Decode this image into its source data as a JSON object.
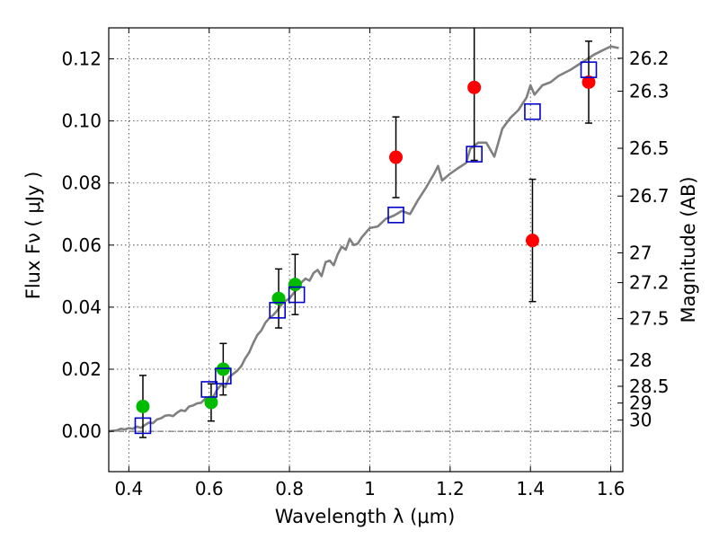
{
  "chart_data": {
    "type": "scatter",
    "xlabel": "Wavelength  λ (μm)",
    "ylabel": "Flux  Fν ( μJy )",
    "ylabel_right": "Magnitude (AB)",
    "xlim": [
      0.35,
      1.63
    ],
    "ylim": [
      -0.013,
      0.13
    ],
    "grid": true,
    "x_ticks": [
      0.4,
      0.6,
      0.8,
      1.0,
      1.2,
      1.4,
      1.6
    ],
    "x_tick_labels": [
      "0.4",
      "0.6",
      "0.8",
      "1",
      "1.2",
      "1.4",
      "1.6"
    ],
    "y_ticks": [
      0.0,
      0.02,
      0.04,
      0.06,
      0.08,
      0.1,
      0.12
    ],
    "y_tick_labels": [
      "0.00",
      "0.02",
      "0.04",
      "0.06",
      "0.08",
      "0.10",
      "0.12"
    ],
    "right_axis_ticks": [
      {
        "label": "26.2",
        "flux": 0.1202
      },
      {
        "label": "26.3",
        "flux": 0.1096
      },
      {
        "label": "26.5",
        "flux": 0.0912
      },
      {
        "label": "26.7",
        "flux": 0.0758
      },
      {
        "label": "27",
        "flux": 0.0575
      },
      {
        "label": "27.2",
        "flux": 0.0479
      },
      {
        "label": "27.5",
        "flux": 0.0363
      },
      {
        "label": "28",
        "flux": 0.0229
      },
      {
        "label": "28.5",
        "flux": 0.0145
      },
      {
        "label": "29",
        "flux": 0.0091
      },
      {
        "label": "30",
        "flux": 0.0036
      }
    ],
    "series": [
      {
        "kind": "line",
        "color": "#808080",
        "points": [
          [
            0.35,
            0.0
          ],
          [
            0.37,
            0.0003
          ],
          [
            0.38,
            0.0008
          ],
          [
            0.39,
            0.0006
          ],
          [
            0.4,
            0.001
          ],
          [
            0.41,
            0.0008
          ],
          [
            0.42,
            0.0015
          ],
          [
            0.43,
            0.0011
          ],
          [
            0.44,
            0.002
          ],
          [
            0.45,
            0.0028
          ],
          [
            0.46,
            0.0026
          ],
          [
            0.47,
            0.0038
          ],
          [
            0.48,
            0.0042
          ],
          [
            0.49,
            0.005
          ],
          [
            0.5,
            0.0052
          ],
          [
            0.51,
            0.0049
          ],
          [
            0.52,
            0.006
          ],
          [
            0.53,
            0.0068
          ],
          [
            0.54,
            0.0065
          ],
          [
            0.55,
            0.008
          ],
          [
            0.56,
            0.0083
          ],
          [
            0.57,
            0.009
          ],
          [
            0.58,
            0.0092
          ],
          [
            0.59,
            0.0105
          ],
          [
            0.6,
            0.0098
          ],
          [
            0.61,
            0.011
          ],
          [
            0.62,
            0.0135
          ],
          [
            0.63,
            0.015
          ],
          [
            0.64,
            0.0142
          ],
          [
            0.65,
            0.0175
          ],
          [
            0.66,
            0.0185
          ],
          [
            0.67,
            0.0195
          ],
          [
            0.68,
            0.021
          ],
          [
            0.69,
            0.0235
          ],
          [
            0.7,
            0.0255
          ],
          [
            0.71,
            0.0285
          ],
          [
            0.72,
            0.031
          ],
          [
            0.73,
            0.0325
          ],
          [
            0.74,
            0.035
          ],
          [
            0.75,
            0.0365
          ],
          [
            0.76,
            0.0375
          ],
          [
            0.77,
            0.039
          ],
          [
            0.78,
            0.0408
          ],
          [
            0.79,
            0.042
          ],
          [
            0.8,
            0.0428
          ],
          [
            0.81,
            0.0445
          ],
          [
            0.82,
            0.046
          ],
          [
            0.83,
            0.048
          ],
          [
            0.84,
            0.0492
          ],
          [
            0.85,
            0.0485
          ],
          [
            0.86,
            0.051
          ],
          [
            0.87,
            0.052
          ],
          [
            0.88,
            0.05
          ],
          [
            0.89,
            0.0545
          ],
          [
            0.9,
            0.055
          ],
          [
            0.91,
            0.0535
          ],
          [
            0.92,
            0.057
          ],
          [
            0.93,
            0.0595
          ],
          [
            0.94,
            0.0585
          ],
          [
            0.95,
            0.062
          ],
          [
            0.96,
            0.06
          ],
          [
            0.97,
            0.0605
          ],
          [
            0.98,
            0.0625
          ],
          [
            0.99,
            0.064
          ],
          [
            1.0,
            0.0655
          ],
          [
            1.02,
            0.066
          ],
          [
            1.04,
            0.0685
          ],
          [
            1.06,
            0.0695
          ],
          [
            1.08,
            0.071
          ],
          [
            1.1,
            0.07
          ],
          [
            1.12,
            0.0745
          ],
          [
            1.14,
            0.0785
          ],
          [
            1.16,
            0.083
          ],
          [
            1.17,
            0.0855
          ],
          [
            1.18,
            0.0808
          ],
          [
            1.2,
            0.083
          ],
          [
            1.22,
            0.0848
          ],
          [
            1.24,
            0.0865
          ],
          [
            1.25,
            0.091
          ],
          [
            1.27,
            0.093
          ],
          [
            1.29,
            0.093
          ],
          [
            1.31,
            0.0885
          ],
          [
            1.33,
            0.0975
          ],
          [
            1.35,
            0.101
          ],
          [
            1.37,
            0.1035
          ],
          [
            1.39,
            0.1075
          ],
          [
            1.4,
            0.1115
          ],
          [
            1.41,
            0.1085
          ],
          [
            1.43,
            0.1115
          ],
          [
            1.45,
            0.1125
          ],
          [
            1.47,
            0.1145
          ],
          [
            1.5,
            0.1165
          ],
          [
            1.53,
            0.119
          ],
          [
            1.56,
            0.1215
          ],
          [
            1.58,
            0.1228
          ],
          [
            1.6,
            0.124
          ],
          [
            1.62,
            0.1235
          ]
        ]
      },
      {
        "kind": "points",
        "marker": "circle",
        "color": "#00bb00",
        "points": [
          {
            "x": 0.435,
            "y": 0.008,
            "err": 0.01
          },
          {
            "x": 0.605,
            "y": 0.0093,
            "err": 0.006
          },
          {
            "x": 0.635,
            "y": 0.02,
            "err": 0.0083
          },
          {
            "x": 0.773,
            "y": 0.0428,
            "err": 0.0095
          },
          {
            "x": 0.814,
            "y": 0.0473,
            "err": 0.0097
          }
        ]
      },
      {
        "kind": "points",
        "marker": "circle",
        "color": "#ff0000",
        "points": [
          {
            "x": 1.065,
            "y": 0.0883,
            "err": 0.013
          },
          {
            "x": 1.26,
            "y": 0.1108,
            "err": 0.0235
          },
          {
            "x": 1.405,
            "y": 0.0615,
            "err": 0.0197
          },
          {
            "x": 1.545,
            "y": 0.1125,
            "err": 0.0132
          }
        ]
      },
      {
        "kind": "points",
        "marker": "open-square",
        "color": "#0000cc",
        "points": [
          {
            "x": 0.435,
            "y": 0.0018
          },
          {
            "x": 0.6,
            "y": 0.0135
          },
          {
            "x": 0.635,
            "y": 0.0178
          },
          {
            "x": 0.77,
            "y": 0.039
          },
          {
            "x": 0.818,
            "y": 0.044
          },
          {
            "x": 1.065,
            "y": 0.0697
          },
          {
            "x": 1.26,
            "y": 0.0893
          },
          {
            "x": 1.405,
            "y": 0.103
          },
          {
            "x": 1.545,
            "y": 0.1165
          }
        ]
      }
    ]
  }
}
